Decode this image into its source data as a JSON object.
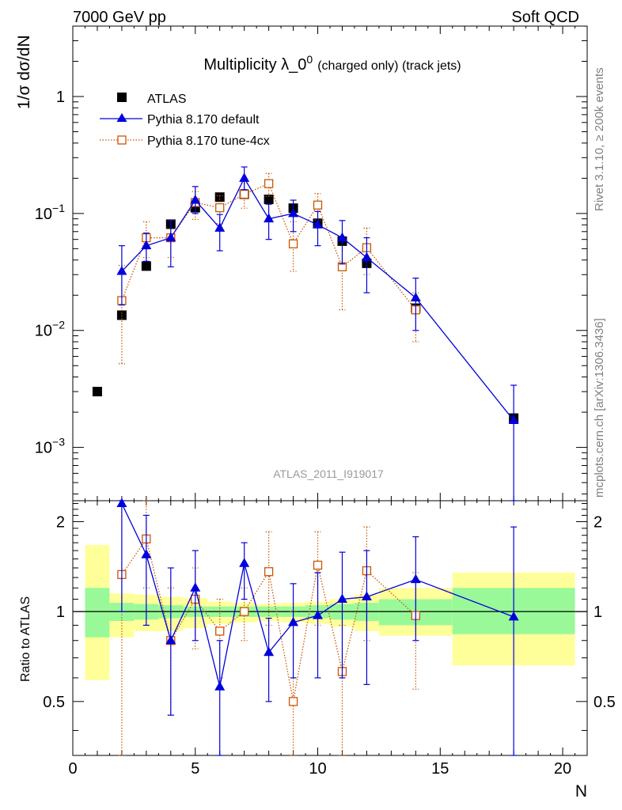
{
  "header": {
    "left": "7000 GeV pp",
    "right": "Soft QCD",
    "side_top": "Rivet 3.1.10, ≥ 200k events",
    "side_bottom": "mcplots.cern.ch [arXiv:1306.3436]"
  },
  "chart_data": {
    "type": "scatter",
    "title": "Multiplicity λ_0",
    "title_sup": "0",
    "title_small": "(charged only) (track jets)",
    "watermark": "ATLAS_2011_I919017",
    "ylabel": "1/σ dσ/dN",
    "xlabel": "N",
    "ratio_ylabel": "Ratio to ATLAS",
    "xlim": [
      0,
      21
    ],
    "ylim": [
      0.00035,
      4
    ],
    "yscale": "log",
    "ratio_ylim": [
      0.33,
      2.35
    ],
    "ratio_yscale": "log",
    "xticks": [
      0,
      5,
      10,
      15,
      20
    ],
    "yticks_main": [
      {
        "value": 0.001,
        "base": "10",
        "exp": "−3"
      },
      {
        "value": 0.01,
        "base": "10",
        "exp": "−2"
      },
      {
        "value": 0.1,
        "base": "10",
        "exp": "−1"
      },
      {
        "value": 1,
        "base": "1",
        "exp": ""
      }
    ],
    "yticks_ratio": [
      {
        "value": 0.5,
        "label": "0.5"
      },
      {
        "value": 1,
        "label": "1"
      },
      {
        "value": 2,
        "label": "2"
      }
    ],
    "legend": {
      "placement": "top-left",
      "entries": [
        "ATLAS",
        "Pythia 8.170 default",
        "Pythia 8.170 tune-4cx"
      ]
    },
    "series": [
      {
        "name": "ATLAS",
        "color": "#000000",
        "marker": "filled-square",
        "x": [
          1,
          2,
          3,
          4,
          5,
          6,
          7,
          8,
          9,
          10,
          11,
          12,
          14,
          18
        ],
        "y": [
          0.003,
          0.0135,
          0.0355,
          0.081,
          0.112,
          0.138,
          0.146,
          0.132,
          0.111,
          0.0825,
          0.058,
          0.0375,
          0.0155,
          0.00178
        ],
        "yerr": [
          0.0002,
          0.0006,
          0.0012,
          0.0025,
          0.003,
          0.003,
          0.003,
          0.003,
          0.003,
          0.002,
          0.0015,
          0.001,
          0.0006,
          0.0001
        ]
      },
      {
        "name": "Pythia 8.170 default",
        "color": "#0000dd",
        "marker": "filled-triangle",
        "line": "solid",
        "x": [
          2,
          3,
          4,
          5,
          6,
          7,
          8,
          9,
          10,
          11,
          12,
          14,
          18
        ],
        "y": [
          0.032,
          0.053,
          0.062,
          0.13,
          0.075,
          0.2,
          0.09,
          0.1,
          0.08,
          0.062,
          0.042,
          0.019,
          0.0017
        ],
        "yerr_lo": [
          0.0155,
          0.014,
          0.027,
          0.03,
          0.027,
          0.04,
          0.03,
          0.03,
          0.027,
          0.025,
          0.021,
          0.009,
          0.00135
        ],
        "yerr_hi": [
          0.021,
          0.015,
          0.025,
          0.04,
          0.023,
          0.05,
          0.03,
          0.03,
          0.024,
          0.025,
          0.02,
          0.009,
          0.0017
        ]
      },
      {
        "name": "Pythia 8.170 tune-4cx",
        "color": "#cc5500",
        "marker": "open-square",
        "line": "dotted",
        "x": [
          2,
          3,
          4,
          5,
          6,
          7,
          8,
          9,
          10,
          11,
          12,
          14
        ],
        "y": [
          0.018,
          0.062,
          0.062,
          0.124,
          0.112,
          0.146,
          0.18,
          0.055,
          0.118,
          0.035,
          0.051,
          0.015
        ],
        "yerr_lo": [
          0.0128,
          0.02,
          0.02,
          0.035,
          0.03,
          0.035,
          0.04,
          0.023,
          0.03,
          0.02,
          0.021,
          0.007
        ],
        "yerr_hi": [
          0.018,
          0.023,
          0.025,
          0.03,
          0.03,
          0.035,
          0.04,
          0.03,
          0.03,
          0.025,
          0.024,
          0.006
        ]
      }
    ],
    "ratio_series": [
      {
        "name": "Pythia 8.170 default",
        "color": "#0000dd",
        "x": [
          2,
          3,
          4,
          5,
          6,
          7,
          8,
          9,
          10,
          11,
          12,
          14,
          18
        ],
        "y": [
          2.3,
          1.55,
          0.8,
          1.2,
          0.56,
          1.45,
          0.73,
          0.92,
          0.97,
          1.1,
          1.12,
          1.28,
          0.96
        ],
        "lo": [
          1.0,
          0.9,
          0.45,
          0.8,
          0.3,
          1.1,
          0.5,
          0.6,
          0.6,
          0.6,
          0.57,
          0.8,
          0.3
        ],
        "hi": [
          2.35,
          2.1,
          1.4,
          1.6,
          0.8,
          1.7,
          0.95,
          1.24,
          1.35,
          1.58,
          1.6,
          1.78,
          1.92
        ]
      },
      {
        "name": "Pythia 8.170 tune-4cx",
        "color": "#cc5500",
        "x": [
          2,
          3,
          4,
          5,
          6,
          7,
          8,
          9,
          10,
          11,
          12,
          14
        ],
        "y": [
          1.33,
          1.75,
          0.8,
          1.1,
          0.86,
          1.0,
          1.36,
          0.5,
          1.43,
          0.63,
          1.37,
          0.97
        ],
        "lo": [
          0.33,
          1.2,
          0.45,
          0.75,
          0.6,
          0.8,
          0.9,
          0.33,
          0.9,
          0.33,
          0.8,
          0.55
        ],
        "hi": [
          2.35,
          2.35,
          1.2,
          1.4,
          1.1,
          1.2,
          1.85,
          1.0,
          1.85,
          0.9,
          1.92,
          1.35
        ]
      }
    ],
    "ratio_bands": {
      "inner_color": "#99f999",
      "outer_color": "#ffff99",
      "bins": [
        {
          "x0": 0.5,
          "x1": 1.5,
          "inner": [
            0.82,
            1.2
          ],
          "outer": [
            0.59,
            1.67
          ]
        },
        {
          "x0": 1.5,
          "x1": 2.5,
          "inner": [
            0.93,
            1.07
          ],
          "outer": [
            0.82,
            1.15
          ]
        },
        {
          "x0": 2.5,
          "x1": 3.5,
          "inner": [
            0.94,
            1.06
          ],
          "outer": [
            0.86,
            1.14
          ]
        },
        {
          "x0": 3.5,
          "x1": 4.5,
          "inner": [
            0.95,
            1.05
          ],
          "outer": [
            0.86,
            1.12
          ]
        },
        {
          "x0": 4.5,
          "x1": 5.5,
          "inner": [
            0.96,
            1.04
          ],
          "outer": [
            0.88,
            1.11
          ]
        },
        {
          "x0": 5.5,
          "x1": 6.5,
          "inner": [
            0.96,
            1.04
          ],
          "outer": [
            0.91,
            1.08
          ]
        },
        {
          "x0": 6.5,
          "x1": 7.5,
          "inner": [
            0.96,
            1.04
          ],
          "outer": [
            0.92,
            1.07
          ]
        },
        {
          "x0": 7.5,
          "x1": 8.5,
          "inner": [
            0.96,
            1.04
          ],
          "outer": [
            0.93,
            1.06
          ]
        },
        {
          "x0": 8.5,
          "x1": 9.5,
          "inner": [
            0.96,
            1.04
          ],
          "outer": [
            0.92,
            1.07
          ]
        },
        {
          "x0": 9.5,
          "x1": 10.5,
          "inner": [
            0.95,
            1.05
          ],
          "outer": [
            0.91,
            1.08
          ]
        },
        {
          "x0": 10.5,
          "x1": 11.5,
          "inner": [
            0.94,
            1.06
          ],
          "outer": [
            0.89,
            1.1
          ]
        },
        {
          "x0": 11.5,
          "x1": 12.5,
          "inner": [
            0.93,
            1.07
          ],
          "outer": [
            0.86,
            1.14
          ]
        },
        {
          "x0": 12.5,
          "x1": 15.5,
          "inner": [
            0.9,
            1.1
          ],
          "outer": [
            0.83,
            1.2
          ]
        },
        {
          "x0": 15.5,
          "x1": 20.5,
          "inner": [
            0.84,
            1.2
          ],
          "outer": [
            0.66,
            1.35
          ]
        }
      ]
    }
  }
}
